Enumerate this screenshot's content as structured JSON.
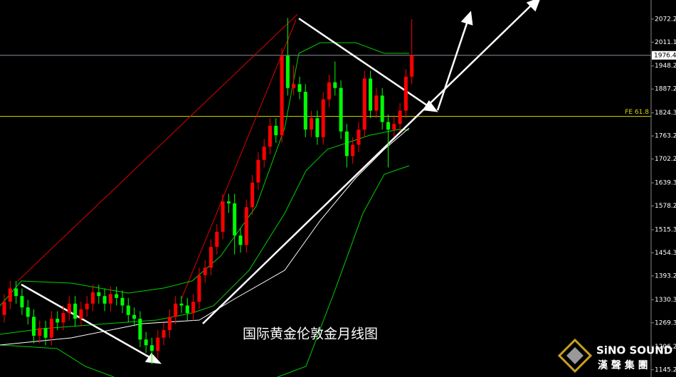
{
  "chart_data": {
    "type": "candlestick",
    "title": "国际黄金伦敦金月线图",
    "open": [
      1290,
      1325,
      1360,
      1340,
      1310,
      1285,
      1235,
      1255,
      1230,
      1280,
      1270,
      1295,
      1320,
      1280,
      1305,
      1320,
      1350,
      1340,
      1320,
      1345,
      1335,
      1315,
      1290,
      1280,
      1225,
      1210,
      1195,
      1230,
      1250,
      1285,
      1320,
      1315,
      1295,
      1325,
      1395,
      1415,
      1470,
      1510,
      1590,
      1585,
      1500,
      1475,
      1575,
      1640,
      1700,
      1735,
      1790,
      1765,
      1975,
      1890,
      1900,
      1880,
      1780,
      1810,
      1760,
      1860,
      1905,
      1890,
      1775,
      1710,
      1740,
      1780,
      1915,
      1830,
      1870,
      1800,
      1780,
      1795,
      1830,
      1920
    ],
    "high": [
      1345,
      1380,
      1380,
      1360,
      1330,
      1305,
      1275,
      1275,
      1300,
      1300,
      1315,
      1340,
      1340,
      1325,
      1340,
      1370,
      1370,
      1360,
      1365,
      1365,
      1355,
      1335,
      1310,
      1300,
      1245,
      1230,
      1250,
      1270,
      1305,
      1340,
      1340,
      1335,
      1345,
      1415,
      1435,
      1490,
      1530,
      1610,
      1610,
      1610,
      1520,
      1595,
      1660,
      1720,
      1755,
      1810,
      1810,
      1995,
      2075,
      1950,
      1920,
      1900,
      1830,
      1830,
      1880,
      1925,
      1960,
      1910,
      1795,
      1760,
      1800,
      1935,
      1935,
      1890,
      1890,
      1820,
      1815,
      1850,
      1940,
      2072
    ],
    "low": [
      1270,
      1305,
      1320,
      1290,
      1265,
      1215,
      1215,
      1210,
      1210,
      1250,
      1250,
      1275,
      1260,
      1260,
      1285,
      1300,
      1320,
      1300,
      1300,
      1315,
      1295,
      1270,
      1260,
      1205,
      1190,
      1160,
      1175,
      1210,
      1230,
      1265,
      1295,
      1275,
      1275,
      1305,
      1375,
      1395,
      1450,
      1490,
      1560,
      1450,
      1455,
      1455,
      1555,
      1620,
      1680,
      1715,
      1745,
      1745,
      1870,
      1870,
      1860,
      1760,
      1760,
      1740,
      1740,
      1840,
      1870,
      1755,
      1680,
      1690,
      1720,
      1760,
      1810,
      1810,
      1780,
      1680,
      1760,
      1775,
      1810,
      1900
    ],
    "close": [
      1325,
      1360,
      1340,
      1310,
      1285,
      1235,
      1255,
      1230,
      1280,
      1270,
      1295,
      1320,
      1280,
      1305,
      1320,
      1350,
      1340,
      1320,
      1345,
      1335,
      1315,
      1290,
      1280,
      1225,
      1210,
      1195,
      1230,
      1250,
      1285,
      1320,
      1315,
      1295,
      1325,
      1395,
      1415,
      1470,
      1510,
      1590,
      1585,
      1500,
      1475,
      1575,
      1640,
      1700,
      1735,
      1790,
      1765,
      1975,
      1890,
      1900,
      1880,
      1780,
      1810,
      1760,
      1860,
      1905,
      1890,
      1775,
      1710,
      1740,
      1780,
      1915,
      1830,
      1870,
      1800,
      1780,
      1795,
      1830,
      1920,
      1976.4
    ],
    "up_color": "#ff0000",
    "down_color": "#00ff00",
    "ylim": [
      1126,
      2122.6
    ],
    "yticks": [
      {
        "value": 2072.2,
        "label": "2072.20"
      },
      {
        "value": 2011.1,
        "label": "2011.10"
      },
      {
        "value": 1948.2,
        "label": "1948.20"
      },
      {
        "value": 1887.2,
        "label": "1887.20"
      },
      {
        "value": 1824.3,
        "label": "1824.30"
      },
      {
        "value": 1763.2,
        "label": "1763.20"
      },
      {
        "value": 1702.2,
        "label": "1702.20"
      },
      {
        "value": 1639.3,
        "label": "1639.30"
      },
      {
        "value": 1578.2,
        "label": "1578.20"
      },
      {
        "value": 1515.3,
        "label": "1515.30"
      },
      {
        "value": 1454.3,
        "label": "1454.30"
      },
      {
        "value": 1393.2,
        "label": "1393.20"
      },
      {
        "value": 1330.3,
        "label": "1330.30"
      },
      {
        "value": 1269.3,
        "label": "1269.30"
      },
      {
        "value": 1206.2,
        "label": "1206.20"
      },
      {
        "value": 1145.2,
        "label": "1145.20"
      }
    ],
    "last_price": 1976.4,
    "annotations": [
      {
        "text": "FE 61.8",
        "y": 1815
      }
    ]
  },
  "logo": {
    "name": "SiNO SOUND",
    "chinese": "漢 聲 集 團"
  }
}
